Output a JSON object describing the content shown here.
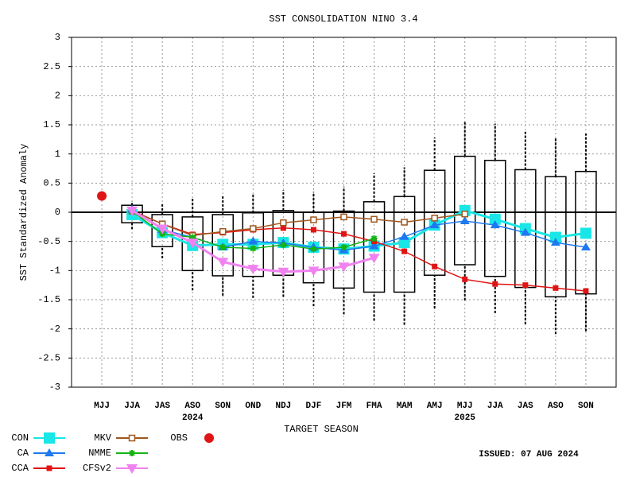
{
  "chart_data": {
    "type": "box-line",
    "title": "SST CONSOLIDATION NINO 3.4",
    "xlabel": "TARGET SEASON",
    "ylabel": "SST Standardized Anomaly",
    "issued": "ISSUED: 07 AUG 2024",
    "categories": [
      "MJJ",
      "JJA",
      "JAS",
      "ASO",
      "SON",
      "OND",
      "NDJ",
      "DJF",
      "JFM",
      "FMA",
      "MAM",
      "AMJ",
      "MJJ",
      "JJA",
      "JAS",
      "ASO",
      "SON"
    ],
    "year_labels": [
      {
        "label": "2024",
        "at": 3
      },
      {
        "label": "2025",
        "at": 12
      }
    ],
    "ylim": [
      -3,
      3
    ],
    "yticks": [
      -3,
      -2.5,
      -2,
      -1.5,
      -1,
      -0.5,
      0,
      0.5,
      1,
      1.5,
      2,
      2.5,
      3
    ],
    "grid": true,
    "zero_line": true,
    "boxes": {
      "low": [
        null,
        -0.29,
        -0.79,
        -1.34,
        -1.43,
        -1.47,
        -1.45,
        -1.61,
        -1.75,
        -1.86,
        -1.93,
        -1.65,
        -1.51,
        -1.73,
        -1.92,
        -2.09,
        -2.04
      ],
      "q1": [
        null,
        -0.18,
        -0.59,
        -1.0,
        -1.09,
        -1.1,
        -1.08,
        -1.21,
        -1.3,
        -1.37,
        -1.37,
        -1.08,
        -0.9,
        -1.1,
        -1.29,
        -1.45,
        -1.4
      ],
      "q3": [
        null,
        0.12,
        -0.04,
        -0.08,
        -0.04,
        -0.01,
        0.03,
        0,
        0.02,
        0.18,
        0.27,
        0.72,
        0.96,
        0.89,
        0.73,
        0.61,
        0.7
      ],
      "high": [
        null,
        0.19,
        0.16,
        0.23,
        0.3,
        0.33,
        0.38,
        0.35,
        0.44,
        0.67,
        0.77,
        1.28,
        1.56,
        1.52,
        1.38,
        1.28,
        1.35
      ]
    },
    "series": [
      {
        "name": "CON",
        "color": "#19e6e6",
        "marker": "big-square",
        "values": [
          null,
          -0.04,
          -0.35,
          -0.57,
          -0.55,
          -0.55,
          -0.52,
          -0.6,
          -0.63,
          -0.58,
          -0.52,
          -0.22,
          0.03,
          -0.12,
          -0.28,
          -0.43,
          -0.36
        ]
      },
      {
        "name": "CA",
        "color": "#1e78f0",
        "marker": "triangle",
        "values": [
          null,
          0.05,
          -0.3,
          -0.43,
          -0.6,
          -0.5,
          -0.53,
          -0.6,
          -0.65,
          -0.58,
          -0.42,
          -0.22,
          -0.15,
          -0.22,
          -0.35,
          -0.52,
          -0.6
        ]
      },
      {
        "name": "CCA",
        "color": "#e01414",
        "marker": "square",
        "values": [
          null,
          0.03,
          -0.2,
          -0.38,
          -0.35,
          -0.3,
          -0.27,
          -0.3,
          -0.37,
          -0.5,
          -0.67,
          -0.93,
          -1.15,
          -1.23,
          -1.25,
          -1.3,
          -1.35
        ]
      },
      {
        "name": "MKV",
        "color": "#a0561e",
        "marker": "open-square",
        "values": [
          null,
          0.02,
          -0.2,
          -0.4,
          -0.33,
          -0.28,
          -0.18,
          -0.13,
          -0.08,
          -0.12,
          -0.17,
          -0.1,
          -0.03,
          null,
          null,
          null,
          null
        ]
      },
      {
        "name": "NMME",
        "color": "#14b414",
        "marker": "star",
        "values": [
          null,
          0.02,
          -0.37,
          -0.43,
          -0.6,
          -0.62,
          -0.56,
          -0.63,
          -0.6,
          -0.45,
          null,
          null,
          null,
          null,
          null,
          null,
          null
        ]
      },
      {
        "name": "CFSv2",
        "color": "#f082f0",
        "marker": "triangle-down",
        "values": [
          null,
          0.03,
          -0.28,
          -0.52,
          -0.85,
          -0.97,
          -1.02,
          -1.0,
          -0.93,
          -0.78,
          null,
          null,
          null,
          null,
          null,
          null,
          null
        ]
      },
      {
        "name": "OBS",
        "color": "#e01414",
        "marker": "dot",
        "values": [
          0.28,
          null,
          null,
          null,
          null,
          null,
          null,
          null,
          null,
          null,
          null,
          null,
          null,
          null,
          null,
          null,
          null
        ]
      }
    ]
  }
}
